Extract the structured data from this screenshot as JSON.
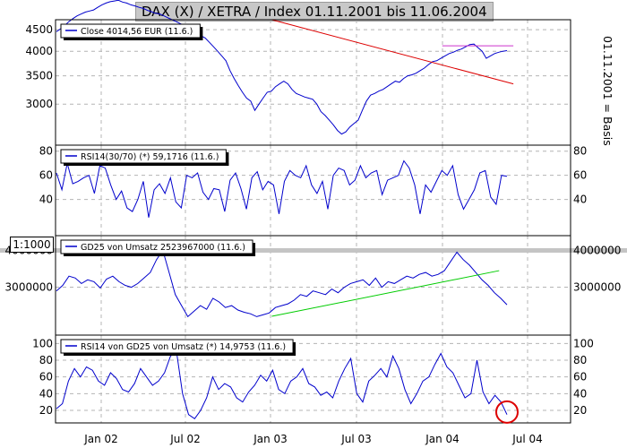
{
  "title": "DAX (X) / XETRA / Index 01.11.2001 bis 11.06.2004",
  "side_label": "01.11.2001 = Basis",
  "scale_box": "1:1000",
  "colors": {
    "series": "#0000cc",
    "trend_red": "#dd0000",
    "trend_green": "#00cc00",
    "level_violet": "#cc33cc",
    "grid": "#b4b4b4",
    "marker": "#dd0000"
  },
  "chart_data": [
    {
      "type": "line",
      "panel": "price",
      "legend": "Close 4014,56 EUR (11.6.)",
      "yscale": "log",
      "ylim": [
        2400,
        4750
      ],
      "yticks": [
        4500,
        4000,
        3500,
        3000
      ],
      "yticks_right": [],
      "x_ticks": [
        "Jan 02",
        "Jul 02",
        "Jan 03",
        "Jul 03",
        "Jan 04",
        "Jul 04"
      ],
      "series": [
        {
          "values": [
            4450,
            4520,
            4600,
            4700,
            4780,
            4850,
            4900,
            4950,
            4980,
            5010,
            5080,
            5150,
            5200,
            5240,
            5260,
            5280,
            5230,
            5200,
            5150,
            5120,
            5080,
            5050,
            5000,
            4960,
            4920,
            4900,
            4850,
            4800,
            4750,
            4700,
            4650,
            4600,
            4580,
            4500,
            4400,
            4350,
            4300,
            4200,
            4100,
            4000,
            3900,
            3800,
            3600,
            3450,
            3320,
            3200,
            3100,
            3050,
            2900,
            3000,
            3100,
            3200,
            3220,
            3300,
            3350,
            3400,
            3350,
            3250,
            3180,
            3150,
            3120,
            3100,
            3080,
            3000,
            2880,
            2820,
            2750,
            2680,
            2600,
            2550,
            2580,
            2650,
            2700,
            2750,
            2900,
            3050,
            3150,
            3180,
            3220,
            3250,
            3300,
            3350,
            3400,
            3380,
            3450,
            3500,
            3520,
            3550,
            3600,
            3650,
            3720,
            3780,
            3800,
            3850,
            3900,
            3950,
            3980,
            4020,
            4050,
            4100,
            4150,
            4160,
            4080,
            4000,
            3850,
            3900,
            3950,
            3980,
            4000,
            4014.56
          ]
        }
      ],
      "lines": [
        {
          "name": "trend-red",
          "points": [
            [
              "2003-01",
              4750
            ],
            [
              "2004-06",
              3350
            ]
          ]
        },
        {
          "name": "level-violet",
          "points": [
            [
              "2004-01",
              4120
            ],
            [
              "2004-06",
              4120
            ]
          ]
        }
      ]
    },
    {
      "type": "line",
      "panel": "rsi",
      "legend": "RSI14(30/70) (*) 59,1716 (11.6.)",
      "ylim": [
        10,
        85
      ],
      "yticks": [
        80,
        60,
        40
      ],
      "yticks_right": [
        80,
        60,
        40
      ],
      "series": [
        {
          "values": [
            62,
            48,
            70,
            53,
            55,
            58,
            60,
            45,
            68,
            66,
            52,
            40,
            47,
            33,
            30,
            40,
            55,
            25,
            48,
            53,
            45,
            58,
            38,
            33,
            60,
            58,
            62,
            46,
            40,
            49,
            48,
            30,
            56,
            62,
            49,
            32,
            58,
            63,
            48,
            55,
            52,
            28,
            55,
            64,
            60,
            58,
            68,
            52,
            45,
            55,
            32,
            60,
            66,
            64,
            52,
            56,
            68,
            58,
            62,
            64,
            44,
            56,
            58,
            60,
            72,
            66,
            52,
            28,
            52,
            46,
            55,
            64,
            60,
            68,
            44,
            32,
            40,
            48,
            62,
            64,
            42,
            36,
            60,
            59.17
          ]
        }
      ]
    },
    {
      "type": "line",
      "panel": "volume",
      "legend": "GD25 von Umsatz 2523967000 (11.6.)",
      "ylim": [
        1700000,
        4400000
      ],
      "yticks": [
        4000000,
        3000000
      ],
      "yticks_right": [
        4000000,
        3000000
      ],
      "series": [
        {
          "values": [
            2900000,
            3050000,
            3300000,
            3250000,
            3100000,
            3200000,
            3150000,
            2980000,
            3220000,
            3300000,
            3150000,
            3050000,
            3000000,
            3100000,
            3250000,
            3400000,
            3750000,
            4000000,
            3400000,
            2800000,
            2500000,
            2200000,
            2350000,
            2500000,
            2400000,
            2700000,
            2600000,
            2450000,
            2500000,
            2380000,
            2320000,
            2280000,
            2200000,
            2250000,
            2300000,
            2450000,
            2500000,
            2550000,
            2650000,
            2800000,
            2750000,
            2900000,
            2850000,
            2800000,
            2950000,
            2850000,
            3000000,
            3100000,
            3150000,
            3200000,
            3050000,
            3250000,
            3000000,
            3150000,
            3100000,
            3200000,
            3300000,
            3250000,
            3350000,
            3400000,
            3300000,
            3350000,
            3450000,
            3700000,
            3950000,
            3750000,
            3600000,
            3400000,
            3200000,
            3050000,
            2850000,
            2700000,
            2523967
          ]
        }
      ],
      "lines": [
        {
          "name": "trend-green",
          "points": [
            [
              "2003-01",
              2210000
            ],
            [
              "2004-05",
              3450000
            ]
          ]
        }
      ]
    },
    {
      "type": "line",
      "panel": "rsi-volume",
      "legend": "RSI14 von GD25 von Umsatz (*) 14,9753 (11.6.)",
      "ylim": [
        5,
        110
      ],
      "yticks": [
        100,
        80,
        60,
        40,
        20
      ],
      "yticks_right": [
        100,
        80,
        60,
        40,
        20
      ],
      "series": [
        {
          "values": [
            22,
            28,
            55,
            70,
            60,
            72,
            68,
            55,
            50,
            65,
            58,
            45,
            42,
            52,
            70,
            60,
            50,
            55,
            65,
            85,
            90,
            40,
            15,
            10,
            20,
            35,
            60,
            45,
            52,
            48,
            35,
            30,
            42,
            50,
            62,
            55,
            68,
            45,
            40,
            55,
            60,
            70,
            52,
            48,
            38,
            42,
            35,
            55,
            70,
            82,
            40,
            30,
            55,
            62,
            70,
            60,
            85,
            70,
            45,
            28,
            40,
            55,
            60,
            75,
            88,
            72,
            65,
            50,
            35,
            40,
            80,
            42,
            28,
            38,
            30,
            14.98
          ]
        }
      ]
    }
  ]
}
